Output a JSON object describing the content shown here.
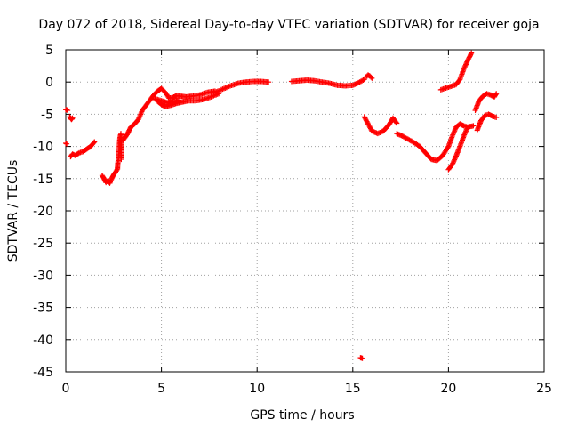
{
  "chart_data": {
    "type": "scatter",
    "title": "Day 072 of 2018, Sidereal Day-to-day VTEC variation (SDTVAR) for receiver goja",
    "xlabel": "GPS time / hours",
    "ylabel": "SDTVAR / TECUs",
    "xlim": [
      0,
      25
    ],
    "ylim": [
      -45,
      5
    ],
    "xticks": [
      0,
      5,
      10,
      15,
      20,
      25
    ],
    "yticks": [
      5,
      0,
      -5,
      -10,
      -15,
      -20,
      -25,
      -30,
      -35,
      -40,
      -45
    ],
    "grid": true,
    "marker": "plus",
    "color": "#ff0000",
    "series": [
      {
        "name": "SDTVAR",
        "segments": [
          {
            "x": [
              0.0,
              0.05,
              0.1
            ],
            "y": [
              -4.3,
              -4.3,
              -4.4
            ]
          },
          {
            "x": [
              0.2,
              0.25,
              0.3,
              0.35
            ],
            "y": [
              -5.4,
              -5.6,
              -5.8,
              -5.6
            ]
          },
          {
            "x": [
              0.0,
              0.05
            ],
            "y": [
              -9.5,
              -9.6
            ]
          },
          {
            "x": [
              0.25,
              0.35,
              0.5,
              0.7,
              0.9,
              1.1,
              1.3,
              1.5
            ],
            "y": [
              -11.6,
              -11.2,
              -11.4,
              -11.0,
              -10.8,
              -10.4,
              -10.0,
              -9.3
            ]
          },
          {
            "x": [
              1.9,
              2.0,
              2.1,
              2.2,
              2.3,
              2.4,
              2.5,
              2.6,
              2.7
            ],
            "y": [
              -14.5,
              -15.0,
              -15.6,
              -15.3,
              -15.7,
              -15.0,
              -14.4,
              -14.0,
              -13.5
            ]
          },
          {
            "x": [
              2.7,
              2.72,
              2.75,
              2.78,
              2.8,
              2.82,
              2.85,
              2.88,
              2.9
            ],
            "y": [
              -13.5,
              -12.6,
              -12.0,
              -11.0,
              -10.0,
              -9.0,
              -8.4,
              -8.0,
              -12.0
            ]
          },
          {
            "x": [
              3.0,
              3.2,
              3.4,
              3.6,
              3.8,
              4.0,
              4.2,
              4.4,
              4.6,
              4.8,
              5.0,
              5.2,
              5.4,
              5.6,
              5.8,
              6.0,
              6.3,
              6.6,
              7.0,
              7.4,
              7.8
            ],
            "y": [
              -9.0,
              -8.2,
              -7.0,
              -6.5,
              -5.8,
              -4.4,
              -3.6,
              -2.8,
              -2.0,
              -1.4,
              -1.0,
              -1.6,
              -2.5,
              -2.4,
              -2.1,
              -2.2,
              -2.3,
              -2.2,
              -2.0,
              -1.6,
              -1.4
            ]
          },
          {
            "x": [
              4.8,
              5.0,
              5.2,
              5.5,
              5.8,
              6.1,
              6.4,
              6.8,
              7.2,
              7.6,
              8.0
            ],
            "y": [
              -3.0,
              -3.5,
              -3.8,
              -3.6,
              -3.3,
              -3.1,
              -2.9,
              -2.9,
              -2.7,
              -2.3,
              -1.8
            ]
          },
          {
            "x": [
              4.6,
              4.8,
              5.0,
              5.3,
              5.6,
              5.9
            ],
            "y": [
              -2.6,
              -2.7,
              -2.9,
              -3.2,
              -3.0,
              -2.8
            ]
          },
          {
            "x": [
              7.8,
              8.2,
              8.6,
              9.0,
              9.4,
              9.8,
              10.2,
              10.6
            ],
            "y": [
              -1.6,
              -1.1,
              -0.6,
              -0.2,
              0.0,
              0.1,
              0.1,
              0.0
            ]
          },
          {
            "x": [
              11.8,
              12.2,
              12.6,
              13.0,
              13.4,
              13.8,
              14.2,
              14.6,
              15.0,
              15.3,
              15.6
            ],
            "y": [
              0.1,
              0.2,
              0.3,
              0.2,
              0.0,
              -0.2,
              -0.5,
              -0.6,
              -0.5,
              -0.1,
              0.4
            ]
          },
          {
            "x": [
              15.7,
              15.8,
              15.9,
              16.0
            ],
            "y": [
              0.8,
              1.1,
              0.9,
              0.6
            ]
          },
          {
            "x": [
              15.4,
              15.5
            ],
            "y": [
              -42.8,
              -42.9
            ]
          },
          {
            "x": [
              15.6,
              15.8,
              16.0,
              16.3,
              16.6,
              16.9,
              17.1,
              17.3
            ],
            "y": [
              -5.4,
              -6.5,
              -7.6,
              -8.0,
              -7.6,
              -6.6,
              -5.6,
              -6.4
            ]
          },
          {
            "x": [
              17.3,
              17.6,
              17.9,
              18.2,
              18.5,
              18.8,
              19.1,
              19.4,
              19.7,
              20.0,
              20.2,
              20.4,
              20.6,
              20.8,
              21.0,
              21.3
            ],
            "y": [
              -8.0,
              -8.4,
              -8.9,
              -9.4,
              -10.0,
              -11.0,
              -12.0,
              -12.2,
              -11.4,
              -10.0,
              -8.4,
              -7.0,
              -6.5,
              -6.8,
              -7.0,
              -6.8
            ]
          },
          {
            "x": [
              20.0,
              20.2,
              20.4,
              20.6,
              20.8,
              21.0
            ],
            "y": [
              -13.6,
              -12.8,
              -11.5,
              -10.0,
              -8.4,
              -7.0
            ]
          },
          {
            "x": [
              19.6,
              19.8,
              20.0,
              20.2,
              20.4,
              20.6,
              20.8,
              21.0,
              21.2
            ],
            "y": [
              -1.2,
              -1.0,
              -0.8,
              -0.6,
              -0.4,
              0.4,
              2.0,
              3.3,
              4.5
            ]
          },
          {
            "x": [
              21.5,
              21.7,
              21.9,
              22.1,
              22.3,
              22.5
            ],
            "y": [
              -7.5,
              -6.0,
              -5.2,
              -5.0,
              -5.3,
              -5.5
            ]
          },
          {
            "x": [
              21.4,
              21.6,
              21.8,
              22.0,
              22.2,
              22.4,
              22.5
            ],
            "y": [
              -4.4,
              -2.9,
              -2.2,
              -1.8,
              -2.0,
              -2.3,
              -1.8
            ]
          }
        ]
      }
    ]
  }
}
